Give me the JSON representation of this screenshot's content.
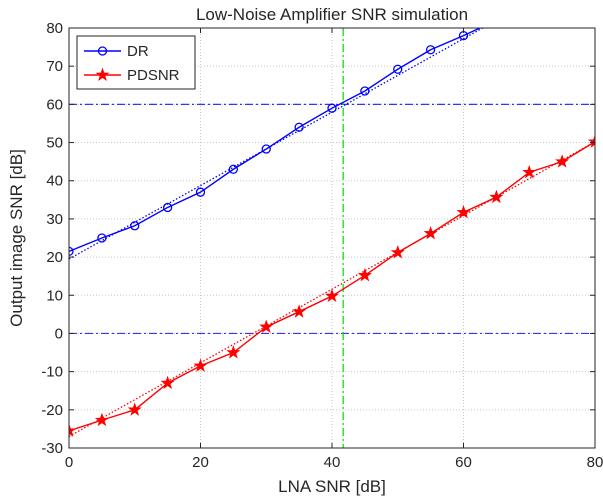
{
  "chart_data": {
    "type": "line",
    "title": "Low-Noise Amplifier SNR simulation",
    "xlabel": "LNA SNR [dB]",
    "ylabel": "Output image SNR [dB]",
    "xlim": [
      0,
      80
    ],
    "ylim": [
      -30,
      80
    ],
    "x_ticks": [
      0,
      20,
      40,
      60,
      80
    ],
    "y_ticks": [
      -30,
      -20,
      -10,
      0,
      10,
      20,
      30,
      40,
      50,
      60,
      70,
      80
    ],
    "grid": true,
    "legend_position": "top-left",
    "series": [
      {
        "name": "DR",
        "color": "#0000ff",
        "marker": "circle",
        "x": [
          0,
          5,
          10,
          15,
          20,
          25,
          30,
          35,
          40,
          45,
          50,
          55,
          60,
          65
        ],
        "y": [
          21.5,
          25,
          28.2,
          33,
          37,
          43,
          48.3,
          54,
          59,
          63.5,
          69.2,
          74.3,
          78,
          82
        ],
        "fit": {
          "style": "dotted",
          "x": [
            0,
            65
          ],
          "y": [
            19.5,
            82
          ]
        }
      },
      {
        "name": "PDSNR",
        "color": "#ff0000",
        "marker": "star",
        "x": [
          0,
          5,
          10,
          15,
          20,
          25,
          30,
          35,
          40,
          45,
          50,
          55,
          60,
          65,
          70,
          75,
          80
        ],
        "y": [
          -25.5,
          -22.7,
          -20,
          -13,
          -8.5,
          -5,
          1.7,
          5.7,
          9.8,
          15.2,
          21.2,
          26.2,
          31.7,
          35.7,
          42.2,
          45,
          50.2
        ],
        "fit": {
          "style": "dotted",
          "x": [
            0,
            80
          ],
          "y": [
            -27,
            50.2
          ]
        }
      }
    ],
    "reference_lines": [
      {
        "orientation": "horizontal",
        "value": 60,
        "color": "#3333ff",
        "style": "dash-dot"
      },
      {
        "orientation": "horizontal",
        "value": 0,
        "color": "#3333ff",
        "style": "dash-dot"
      },
      {
        "orientation": "vertical",
        "value": 41.7,
        "color": "#00dd00",
        "style": "dash-dot"
      }
    ]
  }
}
